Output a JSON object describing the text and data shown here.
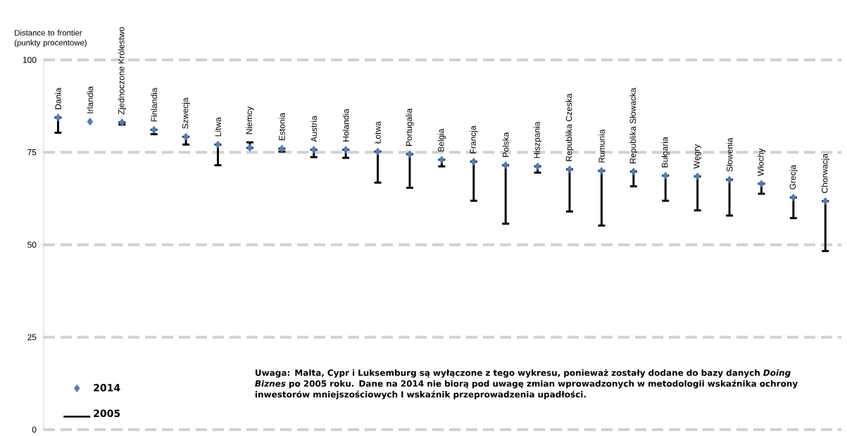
{
  "chart_data": {
    "type": "scatter",
    "ylabel": "Distance to frontier (punkty procentowe)",
    "categories": [
      "Dania",
      "Irlandia",
      "Zjednoczone Królestwo",
      "Finlandia",
      "Szwecja",
      "Litwa",
      "Niemcy",
      "Estonia",
      "Austria",
      "Holandia",
      "Łotwa",
      "Portugalia",
      "Belgia",
      "Francja",
      "Polska",
      "Hiszpania",
      "Republika Czeska",
      "Rumunia",
      "Republika Słowacka",
      "Bułgaria",
      "Węgry",
      "Słowenia",
      "Włochy",
      "Grecja",
      "Chorwacja"
    ],
    "series": [
      {
        "name": "2014",
        "color": "#4a7ebb",
        "marker": "diamond",
        "values": [
          84.4,
          83.3,
          83.1,
          81.1,
          79.2,
          77.1,
          76.2,
          76.0,
          75.7,
          75.7,
          75.2,
          74.5,
          73.0,
          72.5,
          71.5,
          71.2,
          70.4,
          70.0,
          69.8,
          68.7,
          68.5,
          67.6,
          66.5,
          62.8,
          61.8
        ],
        "errors": [
          [
            80.3,
            84.4
          ],
          null,
          [
            82.5,
            83.1
          ],
          [
            79.9,
            81.1
          ],
          [
            77.1,
            79.2
          ],
          [
            71.5,
            77.1
          ],
          [
            76.2,
            77.7
          ],
          [
            75.2,
            76.0
          ],
          [
            73.7,
            75.7
          ],
          [
            73.5,
            75.7
          ],
          [
            66.8,
            75.2
          ],
          [
            65.4,
            74.5
          ],
          [
            71.2,
            73.0
          ],
          [
            61.9,
            72.5
          ],
          [
            55.7,
            71.5
          ],
          [
            69.5,
            71.2
          ],
          [
            59.0,
            70.4
          ],
          [
            55.2,
            70.0
          ],
          [
            65.8,
            69.8
          ],
          [
            61.9,
            68.7
          ],
          [
            59.3,
            68.5
          ],
          [
            57.9,
            67.6
          ],
          [
            63.8,
            66.5
          ],
          [
            57.2,
            62.8
          ],
          [
            48.3,
            61.8
          ]
        ]
      }
    ],
    "ylim": [
      0,
      100
    ],
    "yticks": [
      0,
      25,
      50,
      75,
      100
    ],
    "grid": "y",
    "legend": "bottom left",
    "annotations": [
      "2005",
      "Uwaga: Malta, Cypr i Luksemburg są wyłączone z tego wykresu, ponieważ zostały dodane do bazy danych *Doing Biznes* po 2005 roku. Dane na 2014 nie biorą pod uwagę zmian wprowadzonych w metodologii wskaźnika ochrony inwestorów mniejszościowych I wskaźnik przeprowadzenia upadłości."
    ]
  }
}
